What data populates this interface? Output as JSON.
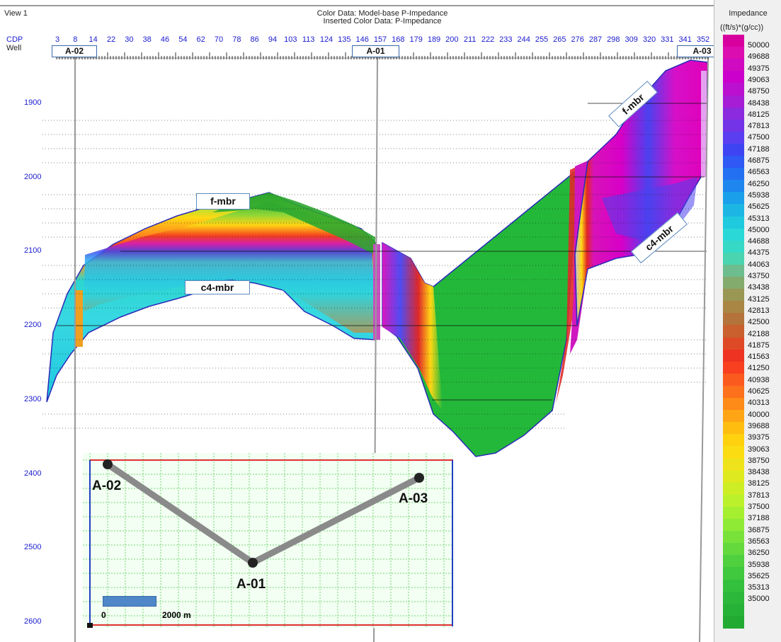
{
  "header": {
    "view": "View 1",
    "color_data_line1": "Color Data: Model-base P-Impedance",
    "color_data_line2": "Inserted Color Data: P-Impedance"
  },
  "axis": {
    "cdp_label": "CDP",
    "well_label": "Well",
    "cdp_ticks": [
      "3",
      "8",
      "14",
      "22",
      "30",
      "38",
      "46",
      "54",
      "62",
      "70",
      "78",
      "86",
      "94",
      "103",
      "113",
      "124",
      "135",
      "146",
      "157",
      "168",
      "179",
      "189",
      "200",
      "211",
      "222",
      "233",
      "244",
      "255",
      "265",
      "276",
      "287",
      "298",
      "309",
      "320",
      "331",
      "341",
      "352"
    ],
    "depth_ticks": [
      "1900",
      "2000",
      "2100",
      "2200",
      "2300",
      "2400",
      "2500",
      "2600"
    ]
  },
  "wells": [
    "A-02",
    "A-01",
    "A-03"
  ],
  "horizons": {
    "f_mbr": "f-mbr",
    "c4_mbr": "c4-mbr"
  },
  "map": {
    "wells": [
      "A-02",
      "A-01",
      "A-03"
    ],
    "scale_start": "0",
    "scale_end": "2000 m"
  },
  "colorbar": {
    "title": "Impedance",
    "unit": "((ft/s)*(g/cc))",
    "labels": [
      "50000",
      "49688",
      "49375",
      "49063",
      "48750",
      "48438",
      "48125",
      "47813",
      "47500",
      "47188",
      "46875",
      "46563",
      "46250",
      "45938",
      "45625",
      "45313",
      "45000",
      "44688",
      "44375",
      "44063",
      "43750",
      "43438",
      "43125",
      "42813",
      "42500",
      "42188",
      "41875",
      "41563",
      "41250",
      "40938",
      "40625",
      "40313",
      "40000",
      "39688",
      "39375",
      "39063",
      "38750",
      "38438",
      "38125",
      "37813",
      "37500",
      "37188",
      "36875",
      "36563",
      "36250",
      "35938",
      "35625",
      "35313",
      "35000"
    ],
    "colors": [
      "#d7009f",
      "#dc0db0",
      "#d00ac0",
      "#cc00cc",
      "#bb10d0",
      "#a71dd5",
      "#8c2ade",
      "#7333e6",
      "#5a3ef0",
      "#3f44f2",
      "#2f58f4",
      "#2470f2",
      "#1e86ee",
      "#1aa0ea",
      "#1cb6e4",
      "#1fcadf",
      "#2ad8d8",
      "#35d9c6",
      "#4bd4b0",
      "#6dbd8e",
      "#84ab6e",
      "#9a9654",
      "#aa8644",
      "#b3733a",
      "#c9602e",
      "#df4a26",
      "#ee3322",
      "#f84020",
      "#fb5a1e",
      "#fd701c",
      "#fe8a18",
      "#ffa414",
      "#ffbd10",
      "#ffd10e",
      "#fbdc12",
      "#eee31a",
      "#dfe91f",
      "#cdee24",
      "#bbf12a",
      "#a5ef30",
      "#8fea35",
      "#78e23a",
      "#63d93d",
      "#4fd03f",
      "#40c83f",
      "#33c03d",
      "#2cb83a",
      "#26b137",
      "#22aa33"
    ]
  }
}
